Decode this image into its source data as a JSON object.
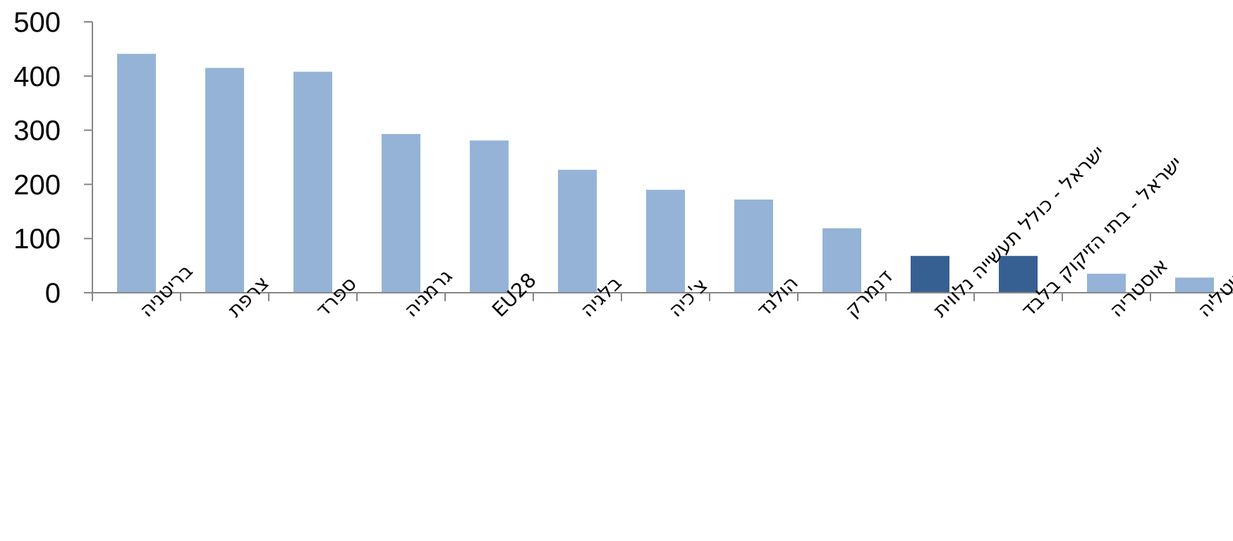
{
  "chart_data": {
    "type": "bar",
    "categories": [
      "בריטניה",
      "צרפת",
      "ספרד",
      "גרמניה",
      "EU28",
      "בלגיה",
      "צ'כיה",
      "הולנד",
      "דנמרק",
      "ישראל - כולל תעשייה נלווית",
      "ישראל - בתי הזיקוק בלבד",
      "אוסטריה",
      "איטליה"
    ],
    "values": [
      441,
      415,
      408,
      293,
      281,
      227,
      190,
      172,
      119,
      68,
      68,
      35,
      28
    ],
    "colors": [
      "#95B3D7",
      "#95B3D7",
      "#95B3D7",
      "#95B3D7",
      "#95B3D7",
      "#95B3D7",
      "#95B3D7",
      "#95B3D7",
      "#95B3D7",
      "#376092",
      "#376092",
      "#95B3D7",
      "#95B3D7"
    ],
    "yticks": [
      0,
      100,
      200,
      300,
      400,
      500
    ],
    "ylim": [
      0,
      500
    ],
    "title": "",
    "xlabel": "",
    "ylabel": "",
    "grid": false,
    "legend": "none"
  }
}
